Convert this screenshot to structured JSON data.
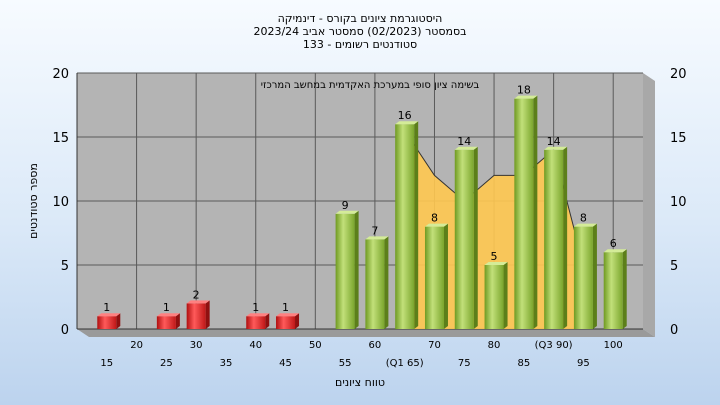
{
  "titles": [
    "היסטוגרמת ציונים בקורס - דינמיקה",
    "בסמסטר  (02/2023)  סמסטר אביב 2023/24",
    "סטודנטים רשומים - 133"
  ],
  "colors": {
    "plot_bg": "#b4b4b4",
    "grid": "#5a5a5a",
    "bar_red": "#e02020",
    "bar_green": "#98c040",
    "area_yellow": "#ffc850"
  },
  "chart_data": {
    "type": "bar",
    "title": "היסטוגרמת ציונים בקורס - דינמיקה",
    "xlabel": "טווח ציונים",
    "ylabel": "מספר סטודנטים",
    "ylim": [
      0,
      20
    ],
    "yticks": [
      0,
      5,
      10,
      15,
      20
    ],
    "xlim": [
      10,
      105
    ],
    "x_tick_labels_row1": [
      {
        "x": 20,
        "label": "20"
      },
      {
        "x": 30,
        "label": "30"
      },
      {
        "x": 40,
        "label": "40"
      },
      {
        "x": 50,
        "label": "50"
      },
      {
        "x": 60,
        "label": "60"
      },
      {
        "x": 70,
        "label": "70"
      },
      {
        "x": 80,
        "label": "80"
      },
      {
        "x": 90,
        "label": "(Q3 90)"
      },
      {
        "x": 100,
        "label": "100"
      }
    ],
    "x_tick_labels_row2": [
      {
        "x": 15,
        "label": "15"
      },
      {
        "x": 25,
        "label": "25"
      },
      {
        "x": 35,
        "label": "35"
      },
      {
        "x": 45,
        "label": "45"
      },
      {
        "x": 55,
        "label": "55"
      },
      {
        "x": 65,
        "label": "(Q1 65)"
      },
      {
        "x": 75,
        "label": "75"
      },
      {
        "x": 85,
        "label": "85"
      },
      {
        "x": 95,
        "label": "95"
      }
    ],
    "bars": [
      {
        "x": 15,
        "value": 1,
        "color": "red"
      },
      {
        "x": 25,
        "value": 1,
        "color": "red"
      },
      {
        "x": 30,
        "value": 2,
        "color": "red"
      },
      {
        "x": 40,
        "value": 1,
        "color": "red"
      },
      {
        "x": 45,
        "value": 1,
        "color": "red"
      },
      {
        "x": 55,
        "value": 9,
        "color": "green"
      },
      {
        "x": 60,
        "value": 7,
        "color": "green"
      },
      {
        "x": 65,
        "value": 16,
        "color": "green"
      },
      {
        "x": 70,
        "value": 8,
        "color": "green"
      },
      {
        "x": 75,
        "value": 14,
        "color": "green"
      },
      {
        "x": 80,
        "value": 5,
        "color": "green"
      },
      {
        "x": 85,
        "value": 18,
        "color": "green"
      },
      {
        "x": 90,
        "value": 14,
        "color": "green"
      },
      {
        "x": 95,
        "value": 8,
        "color": "green"
      },
      {
        "x": 100,
        "value": 6,
        "color": "green"
      }
    ],
    "comparison_area": {
      "annotation": "בשימה  ציון סופי במערכת האקדמית במחשב המרכזי",
      "points": [
        {
          "x": 65,
          "y": 15.5
        },
        {
          "x": 70,
          "y": 12
        },
        {
          "x": 75,
          "y": 10
        },
        {
          "x": 80,
          "y": 12
        },
        {
          "x": 85,
          "y": 12
        },
        {
          "x": 90,
          "y": 14
        },
        {
          "x": 95,
          "y": 5
        }
      ]
    }
  }
}
